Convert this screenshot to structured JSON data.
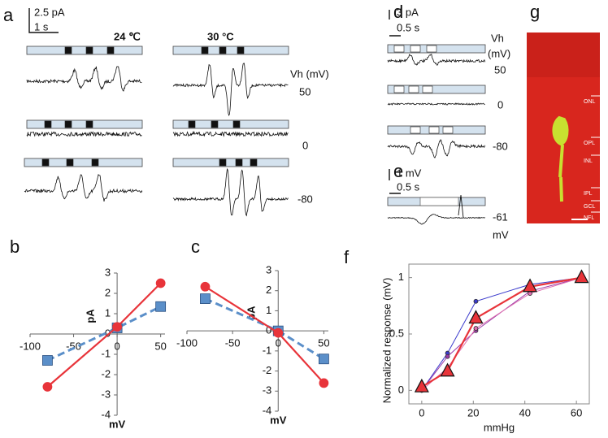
{
  "panels": {
    "a": {
      "label": "a",
      "scale_y": "2.5 pA",
      "scale_x": "1 s",
      "temp1": "24 ℃",
      "temp2": "30 °C",
      "vh_label": "Vh  (mV)",
      "vh": [
        "50",
        "0",
        "-80"
      ]
    },
    "d": {
      "label": "d",
      "scale_y": "3 pA",
      "scale_x": "0.5 s",
      "vh_label": "Vh",
      "vh_unit": "(mV)",
      "vh": [
        "50",
        "0",
        "-80"
      ]
    },
    "e": {
      "label": "e",
      "scale_y": "1 mV",
      "scale_x": "0.5 s",
      "potential": "-61",
      "unit": "mV"
    },
    "g": {
      "label": "g",
      "layers": [
        "ONL",
        "OPL",
        "INL",
        "IPL",
        "GCL",
        "NFL"
      ]
    }
  },
  "chart_data": [
    {
      "type": "line",
      "label": "b",
      "axes": "origin",
      "xlabel": "mV",
      "ylabel": "pA",
      "x": [
        -80,
        0,
        50
      ],
      "xlim": [
        -100,
        55
      ],
      "xticks": [
        -100,
        -50,
        0,
        50
      ],
      "ylim": [
        -4,
        3
      ],
      "yticks": [
        -4,
        -3,
        -2,
        -1,
        0,
        1,
        2,
        3
      ],
      "series": [
        {
          "color": "#5b8fc9",
          "marker": "square",
          "dash": true,
          "values": [
            -1.3,
            0.3,
            1.35
          ]
        },
        {
          "color": "#e8343a",
          "marker": "circle",
          "dash": false,
          "values": [
            -2.6,
            0.35,
            2.5
          ]
        }
      ]
    },
    {
      "type": "line",
      "label": "c",
      "axes": "origin",
      "xlabel": "mV",
      "ylabel": "pA",
      "x": [
        -80,
        0,
        50
      ],
      "xlim": [
        -100,
        55
      ],
      "xticks": [
        -100,
        -50,
        0,
        50
      ],
      "ylim": [
        -4,
        3
      ],
      "yticks": [
        -4,
        -3,
        -2,
        -1,
        0,
        1,
        2,
        3
      ],
      "series": [
        {
          "color": "#5b8fc9",
          "marker": "square",
          "dash": true,
          "values": [
            1.6,
            0,
            -1.4
          ]
        },
        {
          "color": "#e8343a",
          "marker": "circle",
          "dash": false,
          "values": [
            2.2,
            -0.1,
            -2.6
          ]
        }
      ]
    },
    {
      "type": "line",
      "label": "f",
      "axes": "box",
      "xlabel": "mmHg",
      "ylabel": "Normalized response (mV)",
      "x": [
        0,
        10,
        21,
        42,
        62
      ],
      "xlim": [
        -5,
        65
      ],
      "xticks": [
        0,
        20,
        40,
        60
      ],
      "ylim": [
        -0.12,
        1.12
      ],
      "yticks": [
        0,
        0.5,
        1
      ],
      "series": [
        {
          "color": "#3a3acc",
          "marker": "dot",
          "dash": false,
          "values": [
            0,
            0.33,
            0.79,
            0.94,
            1
          ]
        },
        {
          "color": "#9a3aa8",
          "marker": "dot",
          "dash": false,
          "values": [
            0,
            0.3,
            0.53,
            0.88,
            1
          ]
        },
        {
          "color": "#e070b0",
          "marker": "dot",
          "dash": false,
          "values": [
            0,
            0.2,
            0.55,
            0.86,
            1
          ]
        },
        {
          "color": "#e8343a",
          "marker": "triangle",
          "dash": false,
          "values": [
            0.03,
            0.17,
            0.64,
            0.92,
            1
          ]
        }
      ]
    }
  ]
}
